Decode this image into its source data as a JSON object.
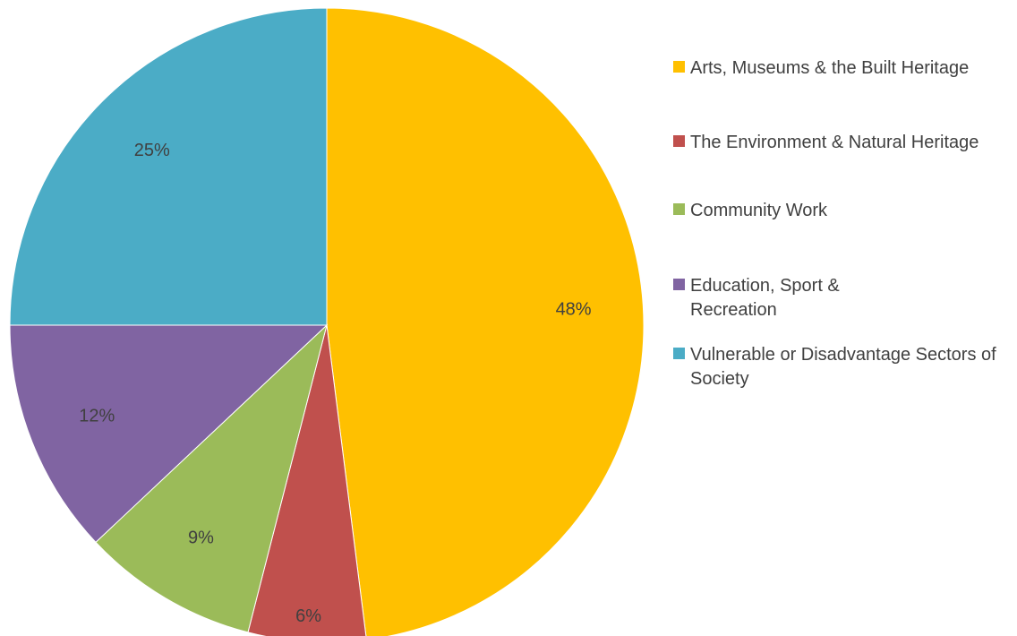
{
  "chart_data": {
    "type": "pie",
    "title": "",
    "start_angle_deg": 0,
    "direction": "clockwise",
    "legend_position": "right",
    "slices": [
      {
        "name": "Arts, Museums & the Built Heritage",
        "value": 48,
        "label": "48%",
        "color": "#FFC000"
      },
      {
        "name": "The Environment & Natural Heritage",
        "value": 6,
        "label": "6%",
        "color": "#C0504D"
      },
      {
        "name": "Community Work",
        "value": 9,
        "label": "9%",
        "color": "#9BBB59"
      },
      {
        "name": "Education, Sport & Recreation",
        "value": 12,
        "label": "12%",
        "color": "#8064A2"
      },
      {
        "name": "Vulnerable or Disadvantage Sectors of Society",
        "value": 25,
        "label": "25%",
        "color": "#4BACC6"
      }
    ]
  }
}
